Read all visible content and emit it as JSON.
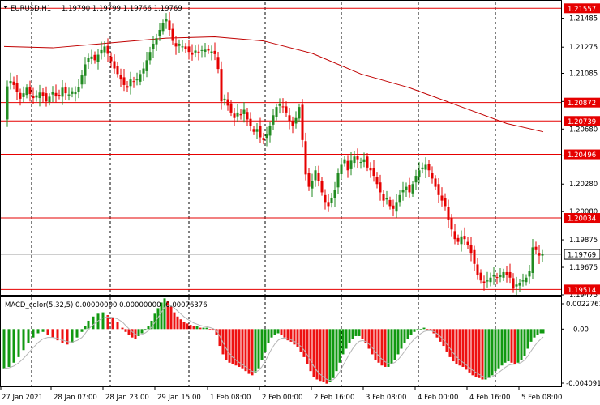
{
  "header": {
    "symbol": "EURUSD,H1",
    "ohlc": "1.19790 1.19799 1.19766 1.19769"
  },
  "price_axis": {
    "ticks": [
      "1.21485",
      "1.21275",
      "1.21085",
      "1.20880",
      "1.20680",
      "1.20485",
      "1.20280",
      "1.20080",
      "1.19875",
      "1.19675",
      "1.19475"
    ]
  },
  "levels": [
    {
      "value": "1.21557"
    },
    {
      "value": "1.20872"
    },
    {
      "value": "1.20739"
    },
    {
      "value": "1.20496"
    },
    {
      "value": "1.20034"
    },
    {
      "value": "1.19514"
    }
  ],
  "current_price": "1.19769",
  "macd": {
    "label": "MACD_color(5,32,5) 0.00000000 0.00000000 -0.00076376",
    "ticks": [
      "0.0022761",
      "0.00",
      "-0.004091"
    ]
  },
  "time_axis": {
    "labels": [
      "27 Jan 2021",
      "28 Jan 07:00",
      "28 Jan 23:00",
      "29 Jan 15:00",
      "1 Feb 08:00",
      "2 Feb 00:00",
      "2 Feb 16:00",
      "3 Feb 08:00",
      "4 Feb 00:00",
      "4 Feb 16:00",
      "5 Feb 08:00"
    ]
  },
  "colors": {
    "bull": "#228B22",
    "bear": "#E60000",
    "level": "#E60000",
    "ma": "#C00000",
    "macd_bull": "#119911",
    "macd_bear": "#EE1111",
    "signal": "#B5B5B5"
  },
  "chart_data": {
    "type": "candlestick",
    "symbol": "EURUSD",
    "timeframe": "H1",
    "x_labels": [
      "27 Jan 2021",
      "28 Jan 07:00",
      "28 Jan 23:00",
      "29 Jan 15:00",
      "1 Feb 08:00",
      "2 Feb 00:00",
      "2 Feb 16:00",
      "3 Feb 08:00",
      "4 Feb 00:00",
      "4 Feb 16:00",
      "5 Feb 08:00"
    ],
    "ylim": [
      1.19475,
      1.216
    ],
    "close_path": [
      [
        0,
        1.2075
      ],
      [
        5,
        1.2105
      ],
      [
        12,
        1.21
      ],
      [
        20,
        1.209
      ],
      [
        28,
        1.2098
      ],
      [
        35,
        1.209
      ],
      [
        45,
        1.2095
      ],
      [
        52,
        1.2088
      ],
      [
        60,
        1.2095
      ],
      [
        66,
        1.209
      ],
      [
        72,
        1.2098
      ],
      [
        78,
        1.2092
      ],
      [
        85,
        1.2096
      ],
      [
        90,
        1.2094
      ],
      [
        95,
        1.2105
      ],
      [
        100,
        1.2115
      ],
      [
        106,
        1.2122
      ],
      [
        112,
        1.2118
      ],
      [
        118,
        1.2124
      ],
      [
        124,
        1.2128
      ],
      [
        130,
        1.212
      ],
      [
        136,
        1.2112
      ],
      [
        142,
        1.2106
      ],
      [
        148,
        1.21
      ],
      [
        152,
        1.2098
      ],
      [
        156,
        1.2104
      ],
      [
        162,
        1.2102
      ],
      [
        168,
        1.2108
      ],
      [
        172,
        1.2112
      ],
      [
        176,
        1.2118
      ],
      [
        180,
        1.2124
      ],
      [
        184,
        1.213
      ],
      [
        188,
        1.2134
      ],
      [
        192,
        1.214
      ],
      [
        196,
        1.2145
      ],
      [
        200,
        1.2148
      ],
      [
        204,
        1.214
      ],
      [
        208,
        1.2132
      ],
      [
        212,
        1.2128
      ],
      [
        216,
        1.213
      ],
      [
        220,
        1.2128
      ],
      [
        224,
        1.2126
      ],
      [
        228,
        1.2124
      ],
      [
        232,
        1.2122
      ],
      [
        236,
        1.2125
      ],
      [
        240,
        1.2124
      ],
      [
        246,
        1.2126
      ],
      [
        252,
        1.2125
      ],
      [
        258,
        1.2124
      ],
      [
        263,
        1.212
      ],
      [
        266,
        1.2095
      ],
      [
        268,
        1.2088
      ],
      [
        272,
        1.209
      ],
      [
        276,
        1.2085
      ],
      [
        280,
        1.208
      ],
      [
        284,
        1.2076
      ],
      [
        288,
        1.208
      ],
      [
        292,
        1.2078
      ],
      [
        296,
        1.2082
      ],
      [
        300,
        1.2075
      ],
      [
        304,
        1.207
      ],
      [
        308,
        1.2066
      ],
      [
        312,
        1.2068
      ],
      [
        316,
        1.2062
      ],
      [
        320,
        1.206
      ],
      [
        324,
        1.2064
      ],
      [
        328,
        1.207
      ],
      [
        332,
        1.2078
      ],
      [
        336,
        1.2084
      ],
      [
        340,
        1.2086
      ],
      [
        344,
        1.2084
      ],
      [
        348,
        1.208
      ],
      [
        352,
        1.2074
      ],
      [
        356,
        1.207
      ],
      [
        360,
        1.2076
      ],
      [
        364,
        1.2084
      ],
      [
        368,
        1.206
      ],
      [
        372,
        1.2035
      ],
      [
        376,
        1.2026
      ],
      [
        380,
        1.203
      ],
      [
        384,
        1.2038
      ],
      [
        388,
        1.203
      ],
      [
        392,
        1.2022
      ],
      [
        396,
        1.2015
      ],
      [
        400,
        1.2012
      ],
      [
        404,
        1.2018
      ],
      [
        408,
        1.2024
      ],
      [
        412,
        1.2036
      ],
      [
        416,
        1.2042
      ],
      [
        420,
        1.2046
      ],
      [
        424,
        1.2038
      ],
      [
        428,
        1.2045
      ],
      [
        432,
        1.2048
      ],
      [
        436,
        1.2046
      ],
      [
        440,
        1.2044
      ],
      [
        444,
        1.2046
      ],
      [
        448,
        1.204
      ],
      [
        452,
        1.2038
      ],
      [
        456,
        1.2034
      ],
      [
        460,
        1.2028
      ],
      [
        464,
        1.2022
      ],
      [
        468,
        1.2016
      ],
      [
        472,
        1.2018
      ],
      [
        476,
        1.2012
      ],
      [
        480,
        1.201
      ],
      [
        484,
        1.2015
      ],
      [
        488,
        1.202
      ],
      [
        492,
        1.2024
      ],
      [
        496,
        1.2026
      ],
      [
        500,
        1.2022
      ],
      [
        504,
        1.2028
      ],
      [
        508,
        1.2034
      ],
      [
        512,
        1.2038
      ],
      [
        516,
        1.204
      ],
      [
        520,
        1.2042
      ],
      [
        524,
        1.2038
      ],
      [
        528,
        1.2032
      ],
      [
        532,
        1.2026
      ],
      [
        536,
        1.202
      ],
      [
        540,
        1.2016
      ],
      [
        544,
        1.2012
      ],
      [
        548,
        1.2002
      ],
      [
        552,
        1.1995
      ],
      [
        556,
        1.1988
      ],
      [
        560,
        1.1986
      ],
      [
        564,
        1.199
      ],
      [
        568,
        1.1988
      ],
      [
        572,
        1.1984
      ],
      [
        576,
        1.1978
      ],
      [
        580,
        1.197
      ],
      [
        584,
        1.1962
      ],
      [
        588,
        1.1958
      ],
      [
        592,
        1.1956
      ],
      [
        596,
        1.1958
      ],
      [
        600,
        1.196
      ],
      [
        604,
        1.1962
      ],
      [
        608,
        1.196
      ],
      [
        612,
        1.1962
      ],
      [
        616,
        1.1964
      ],
      [
        620,
        1.1962
      ],
      [
        624,
        1.196
      ],
      [
        628,
        1.1952
      ],
      [
        632,
        1.1955
      ],
      [
        636,
        1.1956
      ],
      [
        640,
        1.1958
      ],
      [
        644,
        1.196
      ],
      [
        648,
        1.1965
      ],
      [
        652,
        1.1982
      ],
      [
        656,
        1.198
      ],
      [
        660,
        1.1976
      ],
      [
        664,
        1.1977
      ],
      [
        667,
        1.19769
      ]
    ],
    "ma_path": [
      [
        0,
        1.2128
      ],
      [
        60,
        1.2127
      ],
      [
        120,
        1.213
      ],
      [
        200,
        1.2134
      ],
      [
        260,
        1.2135
      ],
      [
        320,
        1.2132
      ],
      [
        380,
        1.2123
      ],
      [
        440,
        1.2108
      ],
      [
        500,
        1.2098
      ],
      [
        560,
        1.2085
      ],
      [
        620,
        1.2072
      ],
      [
        665,
        1.2066
      ]
    ],
    "levels": [
      1.21557,
      1.20872,
      1.20739,
      1.20496,
      1.20034,
      1.19514
    ],
    "macd_ylim": [
      -0.004091,
      0.0022761
    ],
    "macd_hist": [
      [
        0,
        -0.0028
      ],
      [
        6,
        -0.0027
      ],
      [
        12,
        -0.0024
      ],
      [
        18,
        -0.002
      ],
      [
        24,
        -0.0015
      ],
      [
        30,
        -0.001
      ],
      [
        36,
        -0.0006
      ],
      [
        42,
        -0.0003
      ],
      [
        48,
        -0.0002
      ],
      [
        54,
        -0.0004
      ],
      [
        60,
        -0.0006
      ],
      [
        66,
        -0.0008
      ],
      [
        72,
        -0.001
      ],
      [
        78,
        -0.0011
      ],
      [
        84,
        -0.001
      ],
      [
        90,
        -0.0006
      ],
      [
        96,
        -0.0002
      ],
      [
        100,
        0.0002
      ],
      [
        104,
        0.0006
      ],
      [
        110,
        0.0009
      ],
      [
        116,
        0.0011
      ],
      [
        122,
        0.0012
      ],
      [
        128,
        0.001
      ],
      [
        134,
        0.0008
      ],
      [
        140,
        0.0005
      ],
      [
        146,
        0.0001
      ],
      [
        150,
        -0.0002
      ],
      [
        154,
        -0.0004
      ],
      [
        158,
        -0.0006
      ],
      [
        162,
        -0.0007
      ],
      [
        166,
        -0.0005
      ],
      [
        170,
        -0.0003
      ],
      [
        174,
        -0.0001
      ],
      [
        178,
        0.0002
      ],
      [
        182,
        0.0006
      ],
      [
        186,
        0.0011
      ],
      [
        190,
        0.0015
      ],
      [
        194,
        0.0019
      ],
      [
        198,
        0.0022
      ],
      [
        202,
        0.002
      ],
      [
        206,
        0.0016
      ],
      [
        210,
        0.0012
      ],
      [
        214,
        0.0009
      ],
      [
        218,
        0.0007
      ],
      [
        222,
        0.0005
      ],
      [
        226,
        0.0004
      ],
      [
        230,
        0.0003
      ],
      [
        234,
        0.0002
      ],
      [
        238,
        0.0002
      ],
      [
        242,
        0.0001
      ],
      [
        246,
        0.0001
      ],
      [
        250,
        0.0001
      ],
      [
        254,
        0.0
      ],
      [
        258,
        -0.0001
      ],
      [
        262,
        -0.0004
      ],
      [
        266,
        -0.0012
      ],
      [
        270,
        -0.0018
      ],
      [
        274,
        -0.0022
      ],
      [
        278,
        -0.0024
      ],
      [
        282,
        -0.0025
      ],
      [
        286,
        -0.0026
      ],
      [
        290,
        -0.0027
      ],
      [
        294,
        -0.0028
      ],
      [
        298,
        -0.003
      ],
      [
        302,
        -0.0032
      ],
      [
        306,
        -0.0033
      ],
      [
        310,
        -0.0031
      ],
      [
        314,
        -0.0028
      ],
      [
        318,
        -0.0022
      ],
      [
        322,
        -0.0016
      ],
      [
        326,
        -0.001
      ],
      [
        330,
        -0.0006
      ],
      [
        334,
        -0.0004
      ],
      [
        338,
        -0.0003
      ],
      [
        342,
        -0.0004
      ],
      [
        346,
        -0.0006
      ],
      [
        350,
        -0.0008
      ],
      [
        354,
        -0.0009
      ],
      [
        358,
        -0.0011
      ],
      [
        362,
        -0.0013
      ],
      [
        366,
        -0.0016
      ],
      [
        370,
        -0.002
      ],
      [
        374,
        -0.0025
      ],
      [
        378,
        -0.003
      ],
      [
        382,
        -0.0034
      ],
      [
        386,
        -0.0036
      ],
      [
        390,
        -0.0037
      ],
      [
        394,
        -0.0038
      ],
      [
        398,
        -0.0039
      ],
      [
        402,
        -0.0038
      ],
      [
        406,
        -0.0035
      ],
      [
        410,
        -0.003
      ],
      [
        414,
        -0.0024
      ],
      [
        418,
        -0.0018
      ],
      [
        422,
        -0.0014
      ],
      [
        426,
        -0.001
      ],
      [
        430,
        -0.0007
      ],
      [
        434,
        -0.0005
      ],
      [
        438,
        -0.0005
      ],
      [
        442,
        -0.0007
      ],
      [
        446,
        -0.001
      ],
      [
        450,
        -0.0014
      ],
      [
        454,
        -0.0018
      ],
      [
        458,
        -0.0022
      ],
      [
        462,
        -0.0024
      ],
      [
        466,
        -0.0026
      ],
      [
        470,
        -0.0027
      ],
      [
        474,
        -0.0027
      ],
      [
        478,
        -0.0025
      ],
      [
        482,
        -0.0022
      ],
      [
        486,
        -0.0018
      ],
      [
        490,
        -0.0014
      ],
      [
        494,
        -0.001
      ],
      [
        498,
        -0.0007
      ],
      [
        502,
        -0.0004
      ],
      [
        506,
        -0.0002
      ],
      [
        510,
        -0.0001
      ],
      [
        514,
        0.0
      ],
      [
        518,
        0.0001
      ],
      [
        522,
        0.0
      ],
      [
        526,
        -0.0001
      ],
      [
        530,
        -0.0003
      ],
      [
        534,
        -0.0006
      ],
      [
        538,
        -0.0009
      ],
      [
        542,
        -0.0012
      ],
      [
        546,
        -0.0016
      ],
      [
        550,
        -0.002
      ],
      [
        554,
        -0.0023
      ],
      [
        558,
        -0.0025
      ],
      [
        562,
        -0.0026
      ],
      [
        566,
        -0.0027
      ],
      [
        570,
        -0.0029
      ],
      [
        574,
        -0.0031
      ],
      [
        578,
        -0.0033
      ],
      [
        582,
        -0.0034
      ],
      [
        586,
        -0.0035
      ],
      [
        590,
        -0.0036
      ],
      [
        594,
        -0.0036
      ],
      [
        598,
        -0.0035
      ],
      [
        602,
        -0.0033
      ],
      [
        606,
        -0.003
      ],
      [
        610,
        -0.0028
      ],
      [
        614,
        -0.0026
      ],
      [
        618,
        -0.0024
      ],
      [
        622,
        -0.0023
      ],
      [
        626,
        -0.0024
      ],
      [
        630,
        -0.0025
      ],
      [
        634,
        -0.0024
      ],
      [
        638,
        -0.0022
      ],
      [
        642,
        -0.0019
      ],
      [
        646,
        -0.0014
      ],
      [
        650,
        -0.0009
      ],
      [
        654,
        -0.0006
      ],
      [
        658,
        -0.0004
      ],
      [
        662,
        -0.0003
      ],
      [
        665,
        -0.0003
      ]
    ]
  }
}
